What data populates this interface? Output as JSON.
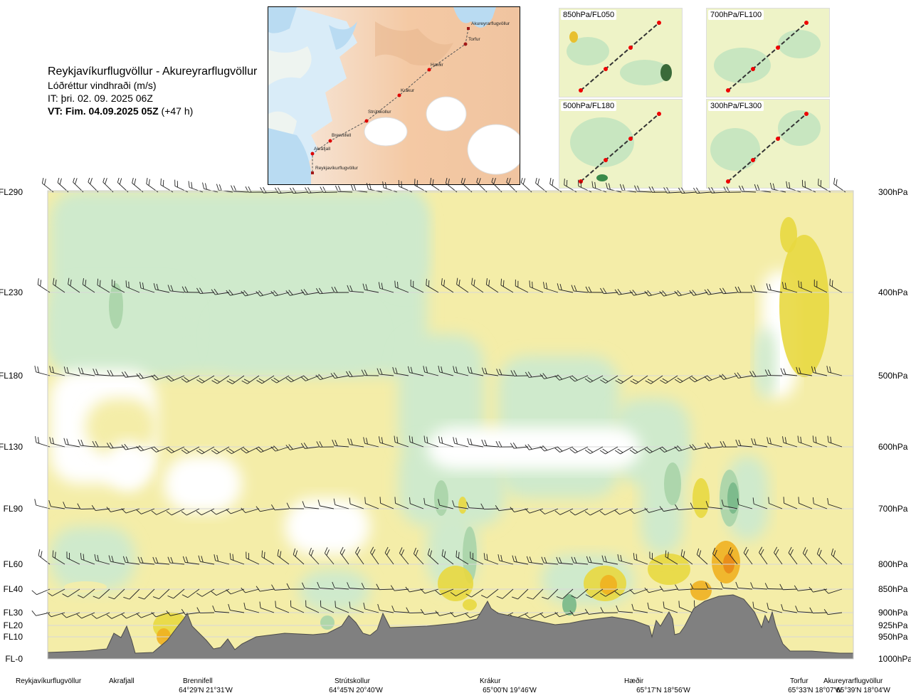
{
  "header": {
    "title": "Reykjavíkurflugvöllur - Akureyrarflugvöllur",
    "subtitle": "Lóðréttur vindhraði (m/s)",
    "it": "IT: þri. 02. 09. 2025 06Z",
    "vt": "VT: Fim. 04.09.2025 05Z",
    "vt_offset": "(+47 h)"
  },
  "route_map": {
    "points": [
      {
        "name": "Akureyrarflugvöllur"
      },
      {
        "name": "Torfur"
      },
      {
        "name": "Hæðir"
      },
      {
        "name": "Krákur"
      },
      {
        "name": "Strútskollur"
      },
      {
        "name": "Brennifell"
      },
      {
        "name": "Akrafjall"
      },
      {
        "name": "Reykjavíkurflugvöllur"
      }
    ]
  },
  "thumbnails": [
    {
      "label": "850hPa/FL050"
    },
    {
      "label": "700hPa/FL100"
    },
    {
      "label": "500hPa/FL180"
    },
    {
      "label": "300hPa/FL300"
    }
  ],
  "chart_data": {
    "type": "heatmap",
    "title": "Reykjavíkurflugvöllur - Akureyrarflugvöllur",
    "variable": "Lóðréttur vindhraði (m/s)",
    "levels": [
      {
        "fl": "FL290",
        "hpa": "300hPa"
      },
      {
        "fl": "FL230",
        "hpa": "400hPa"
      },
      {
        "fl": "FL180",
        "hpa": "500hPa"
      },
      {
        "fl": "FL130",
        "hpa": "600hPa"
      },
      {
        "fl": "FL90",
        "hpa": "700hPa"
      },
      {
        "fl": "FL60",
        "hpa": "800hPa"
      },
      {
        "fl": "FL40",
        "hpa": "850hPa"
      },
      {
        "fl": "FL30",
        "hpa": "900hPa"
      },
      {
        "fl": "FL20",
        "hpa": "925hPa"
      },
      {
        "fl": "FL10",
        "hpa": "950hPa"
      },
      {
        "fl": "FL-0",
        "hpa": "1000hPa"
      }
    ],
    "waypoints": [
      {
        "name": "Reykjavíkurflugvöllur",
        "coord": ""
      },
      {
        "name": "Akrafjall",
        "coord": ""
      },
      {
        "name": "Brennifell",
        "coord": "64°29'N 21°31'W"
      },
      {
        "name": "Strútskollur",
        "coord": "64°45'N 20°40'W"
      },
      {
        "name": "Krákur",
        "coord": "65°00'N 19°46'W"
      },
      {
        "name": "Hæðir",
        "coord": "65°17'N 18°56'W"
      },
      {
        "name": "Torfur",
        "coord": "65°33'N 18°07'W"
      },
      {
        "name": "Akureyrarflugvöllur",
        "coord": "65°39'N 18°04'W"
      }
    ],
    "legend": "none",
    "colors": {
      "updraft_weak": "#f4eda8",
      "updraft_moderate": "#e8d840",
      "updraft_strong": "#f0b020",
      "updraft_extreme": "#e88a18",
      "downdraft_weak": "#cfeacc",
      "downdraft_moderate": "#a8d4a8",
      "downdraft_strong": "#78b888",
      "neutral": "#ffffff",
      "terrain": "#808080"
    }
  }
}
